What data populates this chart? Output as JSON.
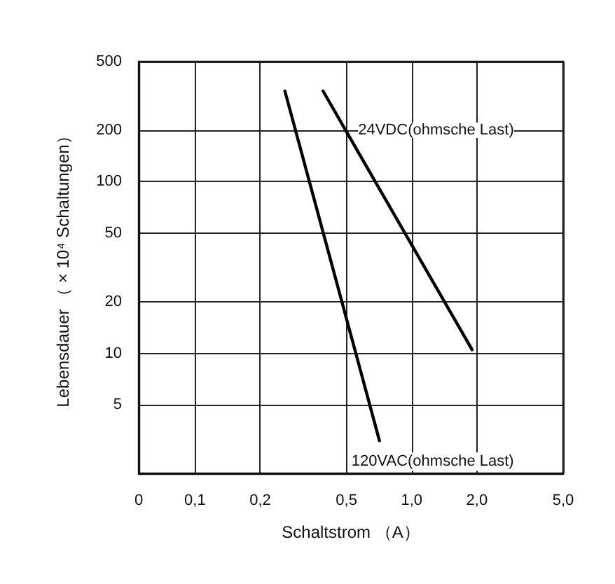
{
  "chart_data": {
    "type": "line",
    "xlabel": "Schaltstrom （A）",
    "ylabel": "Lebensdauer （ × 10⁴ Schaltungen）",
    "log": "xy",
    "grid": true,
    "legend": false,
    "marker": "none",
    "line_style": "solid",
    "xlim": [
      0.055,
      5
    ],
    "xticks": [
      {
        "value": 0.055,
        "label": "0"
      },
      {
        "value": 0.1,
        "label": "0,1"
      },
      {
        "value": 0.2,
        "label": "0,2"
      },
      {
        "value": 0.5,
        "label": "0,5"
      },
      {
        "value": 1,
        "label": "1,0"
      },
      {
        "value": 2,
        "label": "2,0"
      },
      {
        "value": 5,
        "label": "5,0"
      }
    ],
    "ylim": [
      2,
      500
    ],
    "yticks": [
      5,
      10,
      20,
      50,
      100,
      200,
      500
    ],
    "series": [
      {
        "name": "24VDC(ohmsche Last)",
        "color": "#000000",
        "x": [
          0.39,
          1.9
        ],
        "values": [
          337,
          10.5
        ]
      },
      {
        "name": "120VAC(ohmsche Last)",
        "color": "#000000",
        "x": [
          0.26,
          0.71
        ],
        "values": [
          337,
          3.1
        ]
      }
    ]
  }
}
